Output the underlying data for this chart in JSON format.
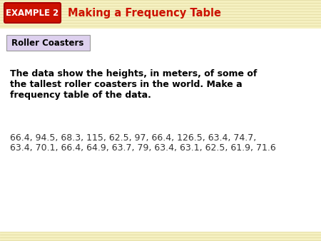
{
  "header_bg": "#f5f0c0",
  "header_line_color": "#e0d8a0",
  "body_bg": "#ffffff",
  "bottom_strip_bg": "#f5f0c0",
  "example_box_bg": "#cc1100",
  "example_box_border": "#aa0000",
  "example_box_text": "EXAMPLE 2",
  "example_box_text_color": "#ffffff",
  "header_title": "Making a Frequency Table",
  "header_title_color": "#cc1100",
  "label_box_text": "Roller Coasters",
  "label_box_bg": "#ddd0ee",
  "label_box_border": "#999999",
  "body_text_color": "#000000",
  "paragraph_line1": "The data show the heights, in meters, of some of",
  "paragraph_line2": "the tallest roller coasters in the world. Make a",
  "paragraph_line3": "frequency table of the data.",
  "data_line1": "66.4, 94.5, 68.3, 115, 62.5, 97, 66.4, 126.5, 63.4, 74.7,",
  "data_line2": "63.4, 70.1, 66.4, 64.9, 63.7, 79, 63.4, 63.1, 62.5, 61.9, 71.6",
  "data_text_color": "#333333",
  "fig_width": 4.5,
  "fig_height": 3.38,
  "dpi": 100
}
